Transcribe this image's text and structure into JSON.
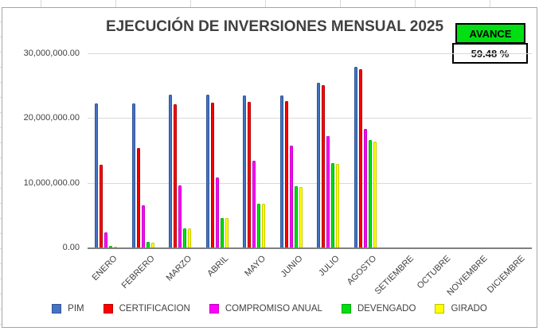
{
  "title_block": {
    "title": "EJECUCIÓN DE INVERSIONES MENSUAL 2025"
  },
  "avance": {
    "label": "AVANCE",
    "percent": "59.48 %",
    "bg_color": "#00DF12"
  },
  "chart_data": {
    "type": "bar",
    "title": "EJECUCIÓN DE INVERSIONES MENSUAL 2025",
    "categories": [
      "ENERO",
      "FEBRERO",
      "MARZO",
      "ABRIL",
      "MAYO",
      "JUNIO",
      "JULIO",
      "AGOSTO",
      "SETIEMBRE",
      "OCTUBRE",
      "NOVIEMBRE",
      "DICIEMBRE"
    ],
    "series": [
      {
        "name": "PIM",
        "color": "#4472C4",
        "edge": "#2F5597",
        "values": [
          22200000,
          22200000,
          23600000,
          23600000,
          23500000,
          23500000,
          25400000,
          27900000,
          0,
          0,
          0,
          0
        ]
      },
      {
        "name": "CERTIFICACION",
        "color": "#FF0000",
        "edge": "#B30000",
        "values": [
          12800000,
          15400000,
          22100000,
          22400000,
          22500000,
          22600000,
          25100000,
          27500000,
          0,
          0,
          0,
          0
        ]
      },
      {
        "name": "COMPROMISO ANUAL",
        "color": "#FF00FF",
        "edge": "#C800C8",
        "values": [
          2300000,
          6500000,
          9600000,
          10800000,
          13400000,
          15700000,
          17200000,
          18300000,
          0,
          0,
          0,
          0
        ]
      },
      {
        "name": "DEVENGADO",
        "color": "#00DF12",
        "edge": "#00A80A",
        "values": [
          250000,
          850000,
          3000000,
          4500000,
          6800000,
          9500000,
          13000000,
          16600000,
          0,
          0,
          0,
          0
        ]
      },
      {
        "name": "GIRADO",
        "color": "#FFFF00",
        "edge": "#CCCC00",
        "values": [
          100000,
          800000,
          3000000,
          4600000,
          6800000,
          9400000,
          12900000,
          16400000,
          0,
          0,
          0,
          0
        ]
      }
    ],
    "y_ticks": [
      {
        "label": "30,000,000.00",
        "value": 30000000
      },
      {
        "label": "20,000,000.00",
        "value": 20000000
      },
      {
        "label": "10,000,000.00",
        "value": 10000000
      },
      {
        "label": "0.00",
        "value": 0
      }
    ],
    "ylim": [
      0,
      30000000
    ],
    "grid": true,
    "legend_position": "bottom"
  }
}
